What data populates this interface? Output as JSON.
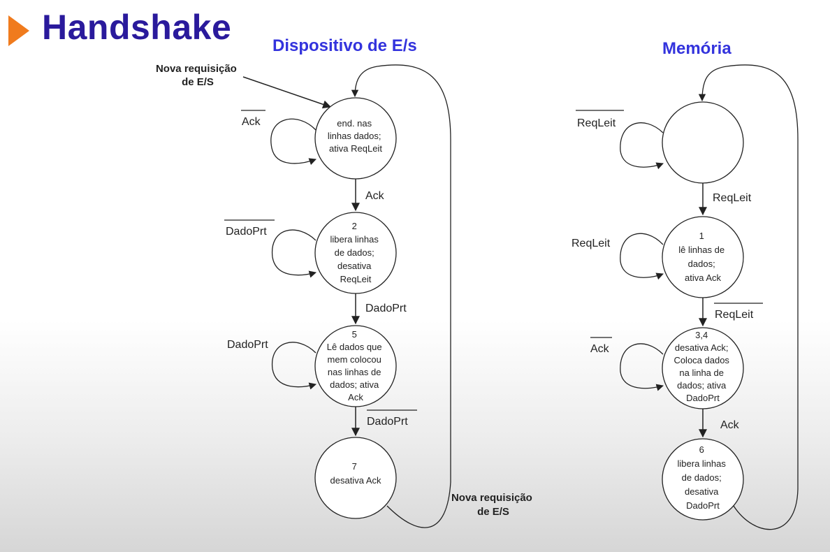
{
  "title": "Handshake",
  "device": {
    "heading": "Dispositivo de E/s",
    "entry_label": [
      "Nova requisição",
      "de E/S"
    ],
    "return_label": [
      "Nova requisição",
      "de E/S"
    ],
    "states": [
      {
        "lines": [
          "end. nas",
          "linhas dados;",
          "ativa ReqLeit"
        ],
        "self_loop": "Ack",
        "self_loop_overline": true
      },
      {
        "lines": [
          "2",
          "libera linhas",
          "de dados;",
          "desativa",
          "ReqLeit"
        ],
        "self_loop": "DadoPrt",
        "self_loop_overline": true
      },
      {
        "lines": [
          "5",
          "Lê dados que",
          "mem colocou",
          "nas linhas de",
          "dados; ativa",
          "Ack"
        ],
        "self_loop": "DadoPrt",
        "self_loop_overline": false
      },
      {
        "lines": [
          "7",
          "desativa Ack"
        ]
      }
    ],
    "transitions": [
      {
        "label": "Ack",
        "overline": false
      },
      {
        "label": "DadoPrt",
        "overline": false
      },
      {
        "label": "DadoPrt",
        "overline": true
      }
    ]
  },
  "memory": {
    "heading": "Memória",
    "states": [
      {
        "lines": [],
        "self_loop": "ReqLeit",
        "self_loop_overline": true
      },
      {
        "lines": [
          "1",
          "lê linhas de",
          "dados;",
          "ativa Ack"
        ],
        "self_loop": "ReqLeit",
        "self_loop_overline": false
      },
      {
        "lines": [
          "3,4",
          "desativa Ack;",
          "Coloca dados",
          "na linha de",
          "dados; ativa",
          "DadoPrt"
        ],
        "self_loop": "Ack",
        "self_loop_overline": true
      },
      {
        "lines": [
          "6",
          "libera linhas",
          "de dados;",
          "desativa",
          "DadoPrt"
        ]
      }
    ],
    "transitions": [
      {
        "label": "ReqLeit",
        "overline": false
      },
      {
        "label": "ReqLeit",
        "overline": true
      },
      {
        "label": "Ack",
        "overline": false
      }
    ]
  },
  "colors": {
    "title": "#2a1a9c",
    "heading": "#3333dd",
    "accent": "#f07b1d",
    "line": "#222222"
  }
}
